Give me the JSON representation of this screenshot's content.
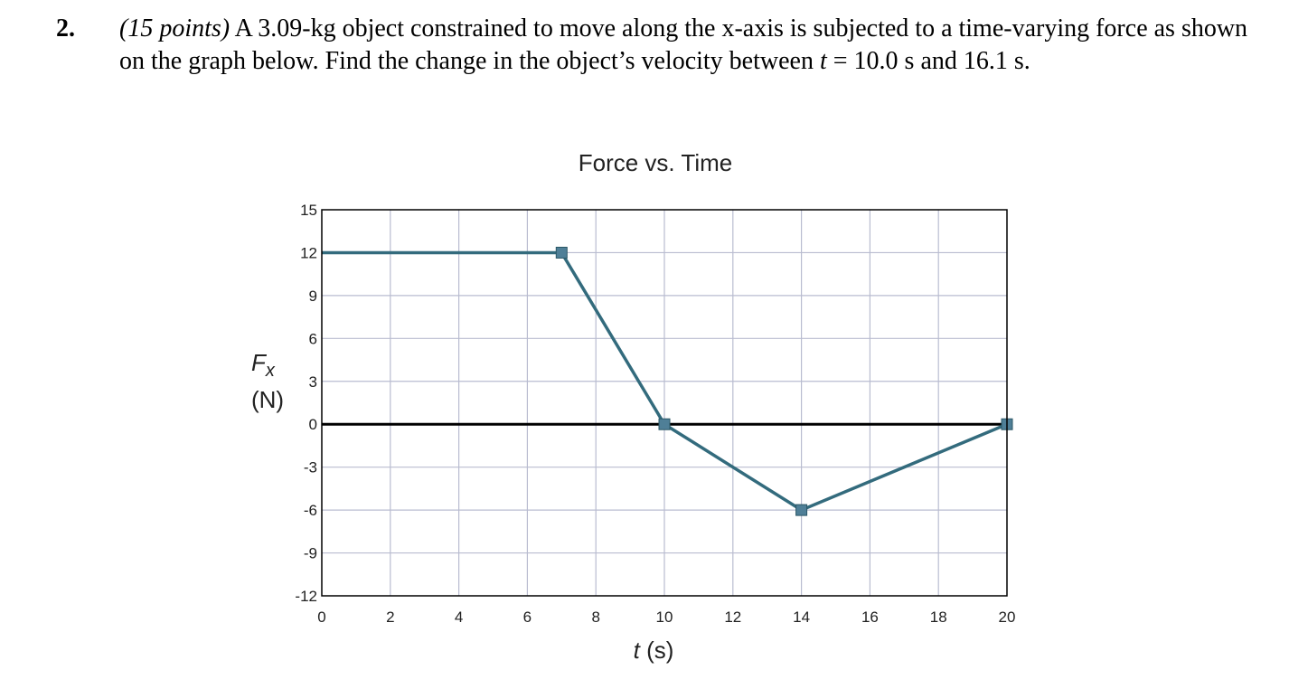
{
  "problem": {
    "number": "2.",
    "points": "(15 points)",
    "text_before_t1": " A 3.09-kg object constrained to move along the x-axis is subjected to a time-varying force as shown on the graph below.  Find the change in the object’s velocity between ",
    "t_symbol_1": "t",
    "text_after_t1": " = 10.0 s and 16.1 s."
  },
  "chart_data": {
    "type": "line",
    "title": "Force vs. Time",
    "xlabel_symbol": "t",
    "xlabel_unit": " (s)",
    "ylabel_symbol": "F",
    "ylabel_subscript": "x",
    "ylabel_unit": "(N)",
    "xlim": [
      0,
      20
    ],
    "ylim": [
      -12,
      15
    ],
    "xticks": [
      0,
      2,
      4,
      6,
      8,
      10,
      12,
      14,
      16,
      18,
      20
    ],
    "yticks": [
      15,
      12,
      9,
      6,
      3,
      0,
      -3,
      -6,
      -9,
      -12
    ],
    "grid": true,
    "series": [
      {
        "points": [
          {
            "x": 0,
            "y": 12
          },
          {
            "x": 7,
            "y": 12
          },
          {
            "x": 10,
            "y": 0
          },
          {
            "x": 14,
            "y": -6
          },
          {
            "x": 20,
            "y": 0
          }
        ],
        "markers_at": [
          7,
          10,
          14,
          20
        ]
      }
    ],
    "colors": {
      "line": "#336b7d",
      "marker": "#4f7f97",
      "grid": "#b9bcd0",
      "zero_line": "#000000",
      "frame": "#000000"
    }
  }
}
